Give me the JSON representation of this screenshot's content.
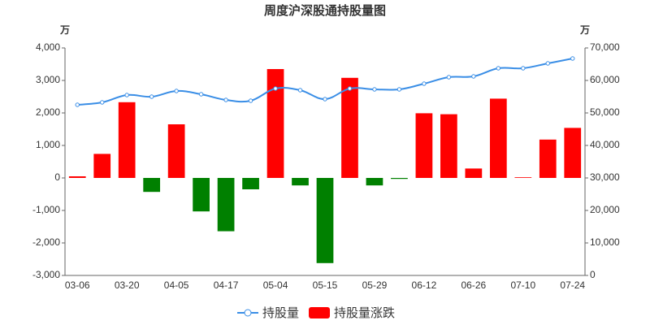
{
  "chart_data": {
    "type": "combo",
    "title": "周度沪深股通持股量图",
    "y_unit": "万",
    "y2_unit": "万",
    "categories": [
      "03-06",
      null,
      "03-20",
      null,
      "04-05",
      null,
      "04-17",
      null,
      "05-04",
      null,
      "05-15",
      null,
      "05-29",
      null,
      "06-12",
      null,
      "06-26",
      null,
      "07-10",
      null,
      "07-24"
    ],
    "series": [
      {
        "name": "持股量",
        "type": "line",
        "axis": "y2",
        "color": "#3a8ee6",
        "values": [
          52500,
          53250,
          55500,
          55000,
          56750,
          55750,
          54000,
          53750,
          57500,
          57000,
          54250,
          57500,
          57250,
          57250,
          59000,
          61000,
          61250,
          63750,
          63750,
          65250,
          66750
        ]
      },
      {
        "name": "持股量涨跌",
        "type": "bar",
        "color": "#ff0000",
        "negative_color": "#008000",
        "values": [
          50,
          740,
          2330,
          -430,
          1650,
          -1030,
          -1640,
          -350,
          3350,
          -230,
          -2620,
          3080,
          -230,
          -30,
          1990,
          1960,
          290,
          2440,
          20,
          1180,
          1540
        ]
      }
    ],
    "ylim": [
      -3000,
      4000
    ],
    "yticks": [
      {
        "value": -3000,
        "label": "-3,000"
      },
      {
        "value": -2000,
        "label": "-2,000"
      },
      {
        "value": -1000,
        "label": "-1,000"
      },
      0,
      {
        "value": 1000,
        "label": "1,000"
      },
      {
        "value": 2000,
        "label": "2,000"
      },
      {
        "value": 3000,
        "label": "3,000"
      },
      {
        "value": 4000,
        "label": "4,000"
      }
    ],
    "y2lim": [
      0,
      70000
    ],
    "y2ticks": [
      0,
      {
        "value": 10000,
        "label": "10,000"
      },
      {
        "value": 20000,
        "label": "20,000"
      },
      {
        "value": 30000,
        "label": "30,000"
      },
      {
        "value": 40000,
        "label": "40,000"
      },
      {
        "value": 50000,
        "label": "50,000"
      },
      {
        "value": 60000,
        "label": "60,000"
      },
      {
        "value": 70000,
        "label": "70,000"
      }
    ]
  }
}
